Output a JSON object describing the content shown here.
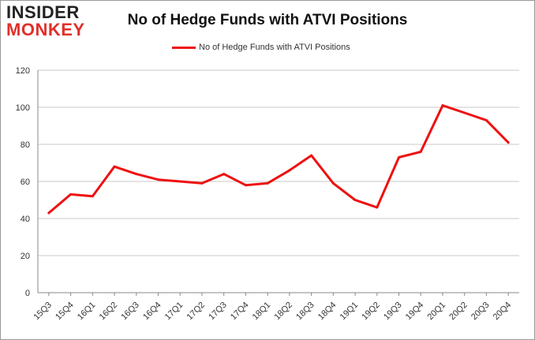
{
  "logo": {
    "line1": "INSIDER",
    "line2": "MONKEY",
    "color_dark": "#222222",
    "color_accent": "#e0302a"
  },
  "chart_data": {
    "type": "line",
    "title": "No of Hedge Funds with ATVI Positions",
    "xlabel": "",
    "ylabel": "",
    "ylim": [
      0,
      120
    ],
    "yticks": [
      0,
      20,
      40,
      60,
      80,
      100,
      120
    ],
    "grid": true,
    "legend": "top-center",
    "categories": [
      "15Q3",
      "15Q4",
      "16Q1",
      "16Q2",
      "16Q3",
      "16Q4",
      "17Q1",
      "17Q2",
      "17Q3",
      "17Q4",
      "18Q1",
      "18Q2",
      "18Q3",
      "18Q4",
      "19Q1",
      "19Q2",
      "19Q3",
      "19Q4",
      "20Q1",
      "20Q2",
      "20Q3",
      "20Q4"
    ],
    "series": [
      {
        "name": "No of Hedge Funds with ATVI Positions",
        "color": "#ee1111",
        "values": [
          43,
          53,
          52,
          68,
          64,
          61,
          60,
          59,
          64,
          58,
          59,
          66,
          74,
          59,
          50,
          46,
          73,
          76,
          101,
          97,
          93,
          81
        ]
      }
    ]
  }
}
